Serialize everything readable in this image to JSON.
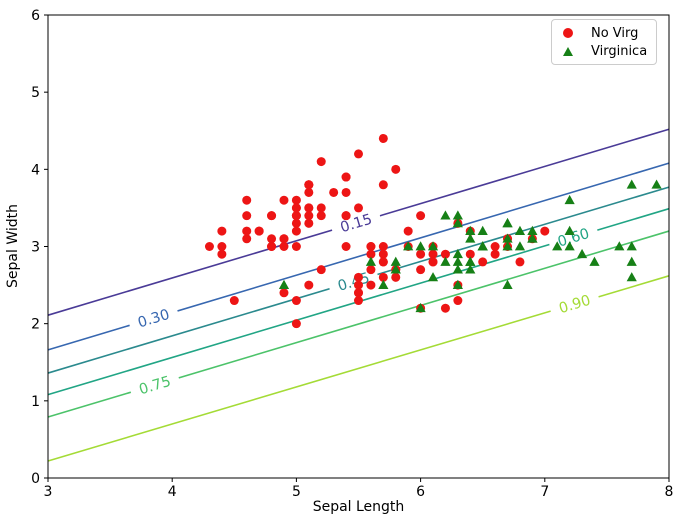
{
  "chart_data": {
    "type": "scatter",
    "title": "",
    "xlabel": "Sepal Length",
    "ylabel": "Sepal Width",
    "xlim": [
      3,
      8
    ],
    "ylim": [
      0,
      6
    ],
    "xticks": [
      "3",
      "4",
      "5",
      "6",
      "7",
      "8"
    ],
    "yticks": [
      "0",
      "1",
      "2",
      "3",
      "4",
      "5",
      "6"
    ],
    "grid": false,
    "legend": {
      "position": "upper-right",
      "entries": [
        {
          "label": "No Virg",
          "marker": "circle",
          "color": "#ed1515"
        },
        {
          "label": "Virginica",
          "marker": "triangle",
          "color": "#168016"
        }
      ]
    },
    "series": [
      {
        "name": "No Virg",
        "marker": "circle",
        "color": "#ed1515",
        "points": [
          [
            5.1,
            3.5
          ],
          [
            4.9,
            3.0
          ],
          [
            4.7,
            3.2
          ],
          [
            4.6,
            3.1
          ],
          [
            5.0,
            3.6
          ],
          [
            5.4,
            3.9
          ],
          [
            4.6,
            3.4
          ],
          [
            5.0,
            3.4
          ],
          [
            4.4,
            2.9
          ],
          [
            4.9,
            3.1
          ],
          [
            5.4,
            3.7
          ],
          [
            4.8,
            3.4
          ],
          [
            4.8,
            3.0
          ],
          [
            4.3,
            3.0
          ],
          [
            5.8,
            4.0
          ],
          [
            5.7,
            4.4
          ],
          [
            5.4,
            3.9
          ],
          [
            5.1,
            3.5
          ],
          [
            5.7,
            3.8
          ],
          [
            5.1,
            3.8
          ],
          [
            5.4,
            3.4
          ],
          [
            5.1,
            3.7
          ],
          [
            4.6,
            3.6
          ],
          [
            5.1,
            3.3
          ],
          [
            4.8,
            3.4
          ],
          [
            5.0,
            3.0
          ],
          [
            5.0,
            3.4
          ],
          [
            5.2,
            3.5
          ],
          [
            5.2,
            3.4
          ],
          [
            4.7,
            3.2
          ],
          [
            4.8,
            3.1
          ],
          [
            5.4,
            3.4
          ],
          [
            5.2,
            4.1
          ],
          [
            5.5,
            4.2
          ],
          [
            4.9,
            3.1
          ],
          [
            5.0,
            3.2
          ],
          [
            5.5,
            3.5
          ],
          [
            4.9,
            3.6
          ],
          [
            4.4,
            3.0
          ],
          [
            5.1,
            3.4
          ],
          [
            5.0,
            3.5
          ],
          [
            4.5,
            2.3
          ],
          [
            4.4,
            3.2
          ],
          [
            5.0,
            3.5
          ],
          [
            5.1,
            3.8
          ],
          [
            4.8,
            3.0
          ],
          [
            5.1,
            3.8
          ],
          [
            4.6,
            3.2
          ],
          [
            5.3,
            3.7
          ],
          [
            5.0,
            3.3
          ],
          [
            7.0,
            3.2
          ],
          [
            6.4,
            3.2
          ],
          [
            6.9,
            3.1
          ],
          [
            5.5,
            2.3
          ],
          [
            6.5,
            2.8
          ],
          [
            5.7,
            2.8
          ],
          [
            6.3,
            3.3
          ],
          [
            4.9,
            2.4
          ],
          [
            6.6,
            2.9
          ],
          [
            5.2,
            2.7
          ],
          [
            5.0,
            2.0
          ],
          [
            5.9,
            3.0
          ],
          [
            6.0,
            2.2
          ],
          [
            6.1,
            2.9
          ],
          [
            5.6,
            2.9
          ],
          [
            6.7,
            3.1
          ],
          [
            5.6,
            3.0
          ],
          [
            5.8,
            2.7
          ],
          [
            6.2,
            2.2
          ],
          [
            5.6,
            2.5
          ],
          [
            5.9,
            3.2
          ],
          [
            6.1,
            2.8
          ],
          [
            6.3,
            2.5
          ],
          [
            6.1,
            2.8
          ],
          [
            6.4,
            2.9
          ],
          [
            6.6,
            3.0
          ],
          [
            6.8,
            2.8
          ],
          [
            6.7,
            3.0
          ],
          [
            6.0,
            2.9
          ],
          [
            5.7,
            2.6
          ],
          [
            5.5,
            2.4
          ],
          [
            5.5,
            2.4
          ],
          [
            5.8,
            2.7
          ],
          [
            6.0,
            2.7
          ],
          [
            5.4,
            3.0
          ],
          [
            6.0,
            3.4
          ],
          [
            6.7,
            3.1
          ],
          [
            6.3,
            2.3
          ],
          [
            5.6,
            3.0
          ],
          [
            5.5,
            2.5
          ],
          [
            5.5,
            2.6
          ],
          [
            6.1,
            3.0
          ],
          [
            5.8,
            2.6
          ],
          [
            5.0,
            2.3
          ],
          [
            5.6,
            2.7
          ],
          [
            5.7,
            3.0
          ],
          [
            5.7,
            2.9
          ],
          [
            6.2,
            2.9
          ],
          [
            5.1,
            2.5
          ],
          [
            5.7,
            2.8
          ]
        ]
      },
      {
        "name": "Virginica",
        "marker": "triangle",
        "color": "#168016",
        "points": [
          [
            6.3,
            3.3
          ],
          [
            5.8,
            2.7
          ],
          [
            7.1,
            3.0
          ],
          [
            6.3,
            2.9
          ],
          [
            6.5,
            3.0
          ],
          [
            7.6,
            3.0
          ],
          [
            4.9,
            2.5
          ],
          [
            7.3,
            2.9
          ],
          [
            6.7,
            2.5
          ],
          [
            7.2,
            3.6
          ],
          [
            6.5,
            3.2
          ],
          [
            6.4,
            2.7
          ],
          [
            6.8,
            3.0
          ],
          [
            5.7,
            2.5
          ],
          [
            5.8,
            2.8
          ],
          [
            6.4,
            3.2
          ],
          [
            6.5,
            3.0
          ],
          [
            7.7,
            3.8
          ],
          [
            7.7,
            2.6
          ],
          [
            6.0,
            2.2
          ],
          [
            6.9,
            3.2
          ],
          [
            5.6,
            2.8
          ],
          [
            7.7,
            2.8
          ],
          [
            6.3,
            2.7
          ],
          [
            6.7,
            3.3
          ],
          [
            7.2,
            3.2
          ],
          [
            6.2,
            2.8
          ],
          [
            6.1,
            3.0
          ],
          [
            6.4,
            2.8
          ],
          [
            7.2,
            3.0
          ],
          [
            7.4,
            2.8
          ],
          [
            7.9,
            3.8
          ],
          [
            6.4,
            2.8
          ],
          [
            6.3,
            2.8
          ],
          [
            6.1,
            2.6
          ],
          [
            7.7,
            3.0
          ],
          [
            6.3,
            3.4
          ],
          [
            6.4,
            3.1
          ],
          [
            6.0,
            3.0
          ],
          [
            6.9,
            3.1
          ],
          [
            6.7,
            3.1
          ],
          [
            6.9,
            3.1
          ],
          [
            5.8,
            2.7
          ],
          [
            6.8,
            3.2
          ],
          [
            6.7,
            3.3
          ],
          [
            6.7,
            3.0
          ],
          [
            6.3,
            2.5
          ],
          [
            6.5,
            3.0
          ],
          [
            6.2,
            3.4
          ],
          [
            5.9,
            3.0
          ]
        ]
      }
    ],
    "contours": {
      "description": "parallel straight probability contour lines with inline labels",
      "levels": [
        {
          "label": "0.15",
          "color": "#4a3b97",
          "y_at_x3": 2.11,
          "y_at_x8": 4.52,
          "label_x": 5.48
        },
        {
          "label": "0.30",
          "color": "#3767b0",
          "y_at_x3": 1.66,
          "y_at_x8": 4.08,
          "label_x": 3.85
        },
        {
          "label": "0.45",
          "color": "#2b8a8e",
          "y_at_x3": 1.36,
          "y_at_x8": 3.77,
          "label_x": 5.46
        },
        {
          "label": "0.60",
          "color": "#21a585",
          "y_at_x3": 1.08,
          "y_at_x8": 3.49,
          "label_x": 7.23
        },
        {
          "label": "0.75",
          "color": "#4cc36a",
          "y_at_x3": 0.79,
          "y_at_x8": 3.2,
          "label_x": 3.86
        },
        {
          "label": "0.90",
          "color": "#a4db36",
          "y_at_x3": 0.22,
          "y_at_x8": 2.62,
          "label_x": 7.24
        }
      ]
    }
  }
}
